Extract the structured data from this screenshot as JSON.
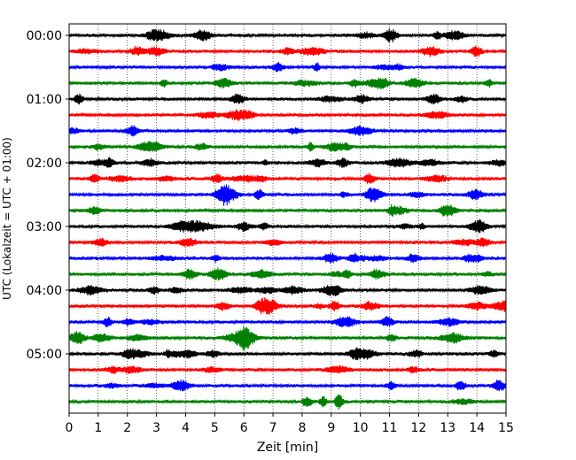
{
  "chart_data": {
    "type": "line",
    "title": "",
    "xlabel": "Zeit  [min]",
    "ylabel": "UTC (Lokalzeit = UTC + 01:00)",
    "xlim": [
      0,
      15
    ],
    "x_ticks": [
      "0",
      "1",
      "2",
      "3",
      "4",
      "5",
      "6",
      "7",
      "8",
      "9",
      "10",
      "11",
      "12",
      "13",
      "14",
      "15"
    ],
    "y_tick_labels": [
      "00:00",
      "01:00",
      "02:00",
      "03:00",
      "04:00",
      "05:00"
    ],
    "grid": "vertical dotted",
    "trace_count": 24,
    "trace_interval_min": 15,
    "trace_colors": [
      "#000000",
      "#ff0000",
      "#0000ff",
      "#008000"
    ],
    "traces": [
      {
        "start": "00:00",
        "color": "#000000"
      },
      {
        "start": "00:15",
        "color": "#ff0000"
      },
      {
        "start": "00:30",
        "color": "#0000ff"
      },
      {
        "start": "00:45",
        "color": "#008000"
      },
      {
        "start": "01:00",
        "color": "#000000"
      },
      {
        "start": "01:15",
        "color": "#ff0000"
      },
      {
        "start": "01:30",
        "color": "#0000ff"
      },
      {
        "start": "01:45",
        "color": "#008000"
      },
      {
        "start": "02:00",
        "color": "#000000"
      },
      {
        "start": "02:15",
        "color": "#ff0000"
      },
      {
        "start": "02:30",
        "color": "#0000ff"
      },
      {
        "start": "02:45",
        "color": "#008000"
      },
      {
        "start": "03:00",
        "color": "#000000"
      },
      {
        "start": "03:15",
        "color": "#ff0000"
      },
      {
        "start": "03:30",
        "color": "#0000ff"
      },
      {
        "start": "03:45",
        "color": "#008000"
      },
      {
        "start": "04:00",
        "color": "#000000"
      },
      {
        "start": "04:15",
        "color": "#ff0000"
      },
      {
        "start": "04:30",
        "color": "#0000ff"
      },
      {
        "start": "04:45",
        "color": "#008000"
      },
      {
        "start": "05:00",
        "color": "#000000"
      },
      {
        "start": "05:15",
        "color": "#ff0000"
      },
      {
        "start": "05:30",
        "color": "#0000ff"
      },
      {
        "start": "05:45",
        "color": "#008000"
      }
    ]
  }
}
